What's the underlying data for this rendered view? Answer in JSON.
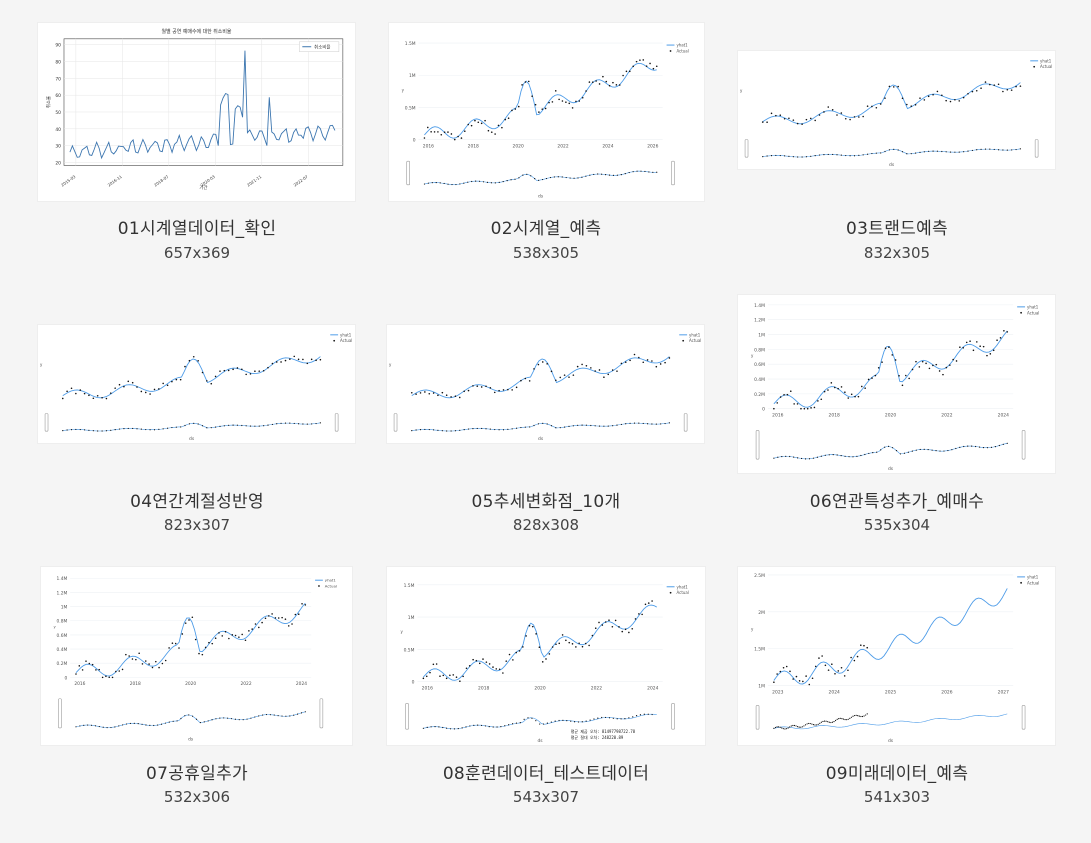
{
  "thumbnails": [
    {
      "name": "01시계열데이터_확인",
      "dims": "657x369",
      "type": "matplotlib",
      "title": "월별 공연 예매수에 대한 취소비율",
      "legend": [
        "취소비율"
      ],
      "xlabel": "기간",
      "ylabel": "취소율",
      "yticks": [
        "90",
        "80",
        "70",
        "60",
        "50",
        "40",
        "30",
        "20"
      ],
      "xticks": [
        "2015-03",
        "2016-11",
        "2018-07",
        "2020-03",
        "2021-11",
        "2022-07"
      ]
    },
    {
      "name": "02시계열_예측",
      "dims": "538x305",
      "type": "plotly",
      "legend": [
        "yhat1",
        "Actual"
      ],
      "xlabel": "ds",
      "ylabel": "y",
      "yticks": [
        "1.5M",
        "1M",
        "0.5M",
        "0"
      ],
      "xticks": [
        "2016",
        "2018",
        "2020",
        "2022",
        "2024",
        "2026"
      ]
    },
    {
      "name": "03트랜드예측",
      "dims": "832x305",
      "type": "plotly",
      "legend": [
        "yhat1",
        "Actual"
      ],
      "xlabel": "ds",
      "ylabel": "y"
    },
    {
      "name": "04연간계절성반영",
      "dims": "823x307",
      "type": "plotly",
      "legend": [
        "yhat1",
        "Actual"
      ],
      "xlabel": "ds",
      "ylabel": "y"
    },
    {
      "name": "05추세변화점_10개",
      "dims": "828x308",
      "type": "plotly",
      "legend": [
        "yhat1",
        "Actual"
      ],
      "xlabel": "ds",
      "ylabel": "y"
    },
    {
      "name": "06연관특성추가_예매수",
      "dims": "535x304",
      "type": "plotly",
      "legend": [
        "yhat1",
        "Actual"
      ],
      "xlabel": "ds",
      "ylabel": "y",
      "yticks": [
        "1.4M",
        "1.2M",
        "1M",
        "0.8M",
        "0.6M",
        "0.4M",
        "0.2M",
        "0"
      ],
      "xticks": [
        "2016",
        "2018",
        "2020",
        "2022",
        "2024"
      ]
    },
    {
      "name": "07공휴일추가",
      "dims": "532x306",
      "type": "plotly",
      "legend": [
        "yhat1",
        "Actual"
      ],
      "xlabel": "ds",
      "ylabel": "y",
      "yticks": [
        "1.4M",
        "1.2M",
        "1M",
        "0.8M",
        "0.6M",
        "0.4M",
        "0.2M",
        "0"
      ],
      "xticks": [
        "2016",
        "2018",
        "2020",
        "2022",
        "2024"
      ]
    },
    {
      "name": "08훈련데이터_테스트데이터",
      "dims": "543x307",
      "type": "plotly",
      "legend": [
        "yhat1",
        "Actual"
      ],
      "xlabel": "ds",
      "ylabel": "y",
      "yticks": [
        "1.5M",
        "1M",
        "0.5M",
        "0"
      ],
      "xticks": [
        "2016",
        "2018",
        "2020",
        "2022",
        "2024"
      ],
      "notes": [
        "평균 제곱 오차: 81497798722.78",
        "평균 절대 오차: 248220.89"
      ]
    },
    {
      "name": "09미래데이터_예측",
      "dims": "541x303",
      "type": "plotly",
      "legend": [
        "yhat1",
        "Actual"
      ],
      "xlabel": "ds",
      "ylabel": "y",
      "yticks": [
        "2.5M",
        "2M",
        "1.5M",
        "1M"
      ],
      "xticks": [
        "2023",
        "2024",
        "2025",
        "2026",
        "2027"
      ]
    }
  ],
  "colors": {
    "line": "#4c9be8",
    "actual": "#111111",
    "mpl": "#3b75af"
  }
}
